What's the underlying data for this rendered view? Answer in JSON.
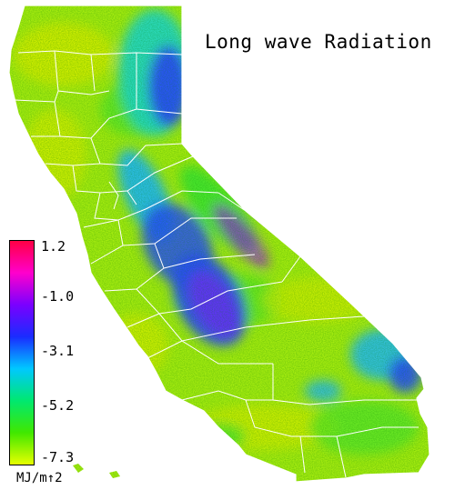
{
  "title": "Long wave Radiation",
  "colorbar": {
    "ticks": [
      "1.2",
      "-1.0",
      "-3.1",
      "-5.2",
      "-7.3"
    ],
    "units": "MJ/m↑2",
    "colors": [
      "#ff0044",
      "#ff00cc",
      "#7a00ff",
      "#1a2cff",
      "#00c8ff",
      "#00e870",
      "#40e800",
      "#e6ff00"
    ]
  },
  "map": {
    "region": "California",
    "palette": {
      "yellow": "#d6f000",
      "yellow_green": "#a8ee10",
      "green": "#40e830",
      "cyan": "#20d8d0",
      "sky": "#20b8ff",
      "blue": "#2a4cff",
      "violet": "#6a30ff",
      "purple": "#a000ff",
      "border": "#ffffff"
    }
  }
}
